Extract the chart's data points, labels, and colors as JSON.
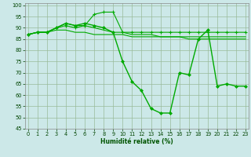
{
  "xlabel": "Humidité relative (%)",
  "bg_color": "#cce8e8",
  "grid_color": "#99bb99",
  "line_color": "#00aa00",
  "xlim": [
    -0.3,
    23.3
  ],
  "ylim": [
    45,
    101
  ],
  "yticks": [
    45,
    50,
    55,
    60,
    65,
    70,
    75,
    80,
    85,
    90,
    95,
    100
  ],
  "xticks": [
    0,
    1,
    2,
    3,
    4,
    5,
    6,
    7,
    8,
    9,
    10,
    11,
    12,
    13,
    14,
    15,
    16,
    17,
    18,
    19,
    20,
    21,
    22,
    23
  ],
  "series": [
    {
      "y": [
        87,
        88,
        88,
        90,
        91,
        90,
        91,
        96,
        97,
        97,
        88,
        88,
        88,
        88,
        88,
        88,
        88,
        88,
        88,
        88,
        88,
        88,
        88,
        88
      ],
      "marker": "+",
      "ms": 2.8,
      "lw": 0.8,
      "mew": 0.8
    },
    {
      "y": [
        87,
        88,
        88,
        90,
        92,
        91,
        91,
        90,
        89,
        88,
        88,
        87,
        87,
        87,
        86,
        86,
        86,
        85,
        85,
        85,
        85,
        85,
        85,
        85
      ],
      "marker": null,
      "ms": 0,
      "lw": 0.8,
      "mew": 0
    },
    {
      "y": [
        87,
        88,
        88,
        89,
        89,
        88,
        88,
        87,
        87,
        87,
        87,
        86,
        86,
        86,
        86,
        86,
        86,
        86,
        86,
        86,
        86,
        86,
        86,
        86
      ],
      "marker": null,
      "ms": 0,
      "lw": 0.8,
      "mew": 0
    },
    {
      "y": [
        87,
        88,
        88,
        90,
        92,
        91,
        92,
        91,
        90,
        88,
        75,
        66,
        62,
        54,
        52,
        52,
        70,
        69,
        85,
        89,
        64,
        65,
        64,
        64
      ],
      "marker": "D",
      "ms": 2.0,
      "lw": 1.0,
      "mew": 0.5
    }
  ]
}
